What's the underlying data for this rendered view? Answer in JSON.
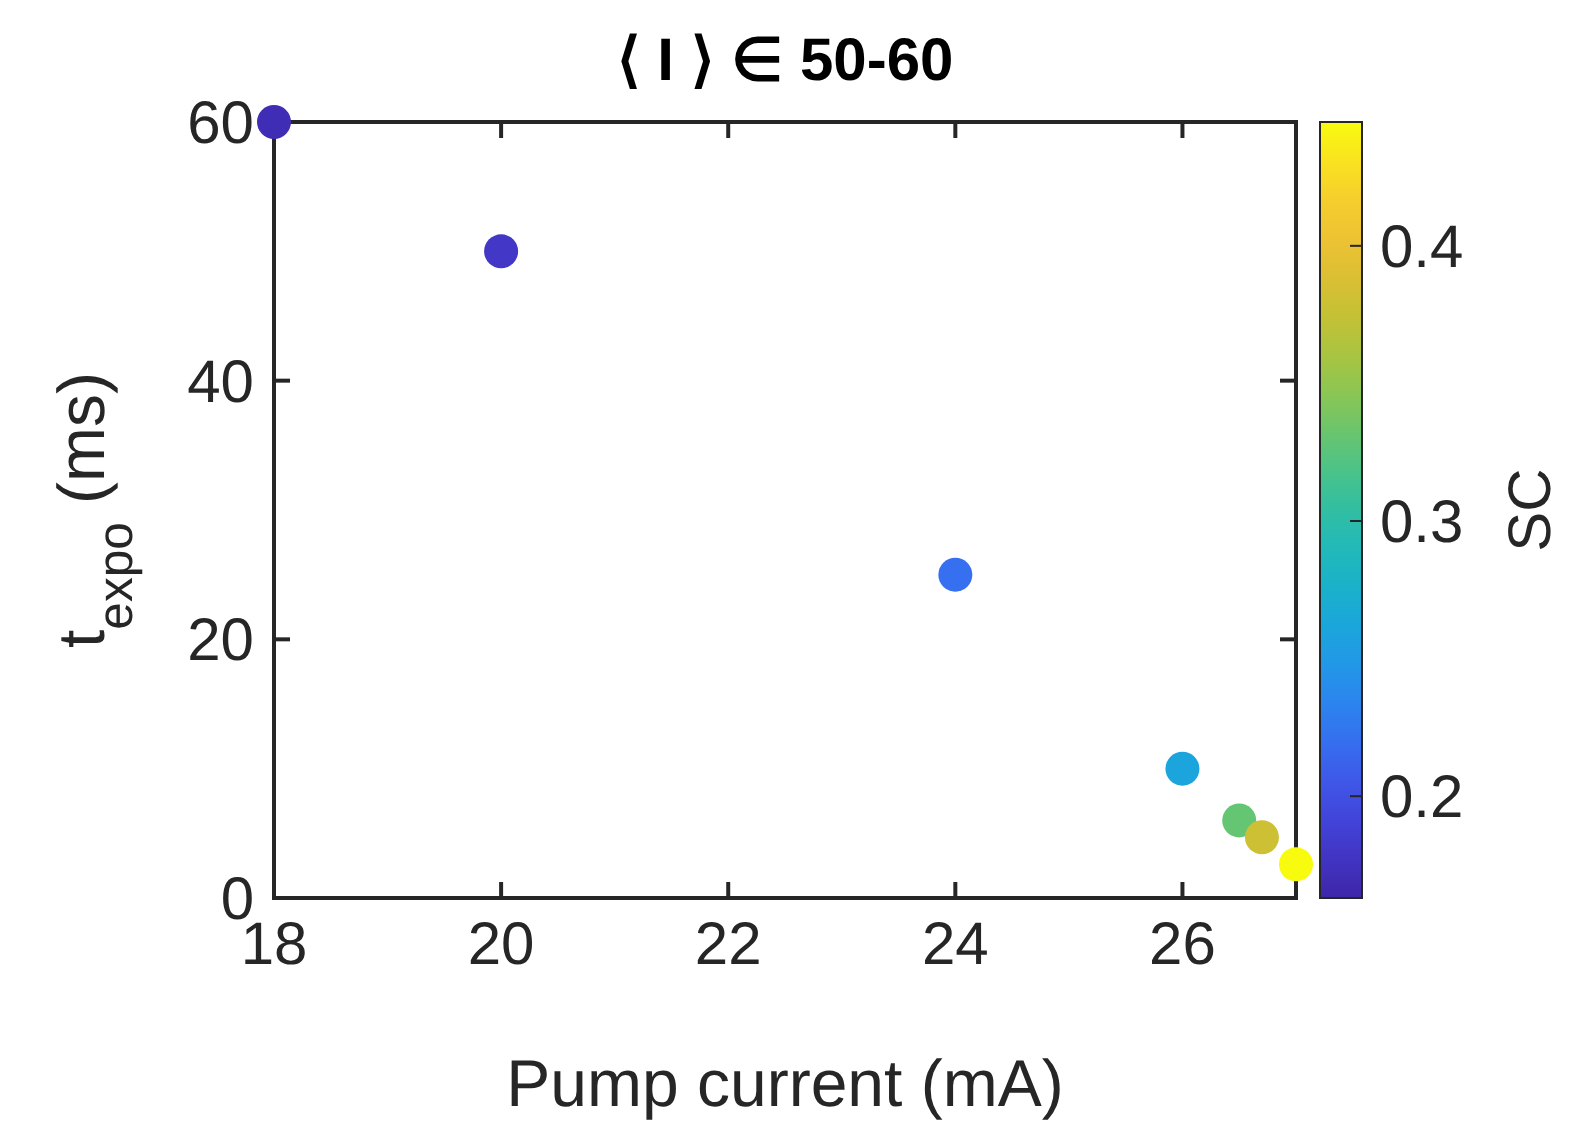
{
  "chart_data": {
    "type": "scatter",
    "title": "⟨ I ⟩ ∈ 50-60",
    "xlabel": "Pump current (mA)",
    "ylabel": "t$_{expo}$ (ms)",
    "clabel": "SC",
    "x": [
      18,
      20,
      24,
      26,
      26.5,
      26.7,
      27
    ],
    "values": [
      60,
      50,
      25,
      10,
      6,
      4.7,
      2.6
    ],
    "cvalues": [
      0.17,
      0.18,
      0.22,
      0.26,
      0.33,
      0.38,
      0.445
    ],
    "xlim": [
      18,
      27
    ],
    "xticks": [
      18,
      20,
      22,
      24,
      26
    ],
    "ylim": [
      0,
      60
    ],
    "yticks": [
      0,
      20,
      40,
      60
    ],
    "clim": [
      0.163,
      0.445
    ],
    "cticks": [
      0.2,
      0.3,
      0.4
    ],
    "marker": "circle",
    "grid": false
  }
}
